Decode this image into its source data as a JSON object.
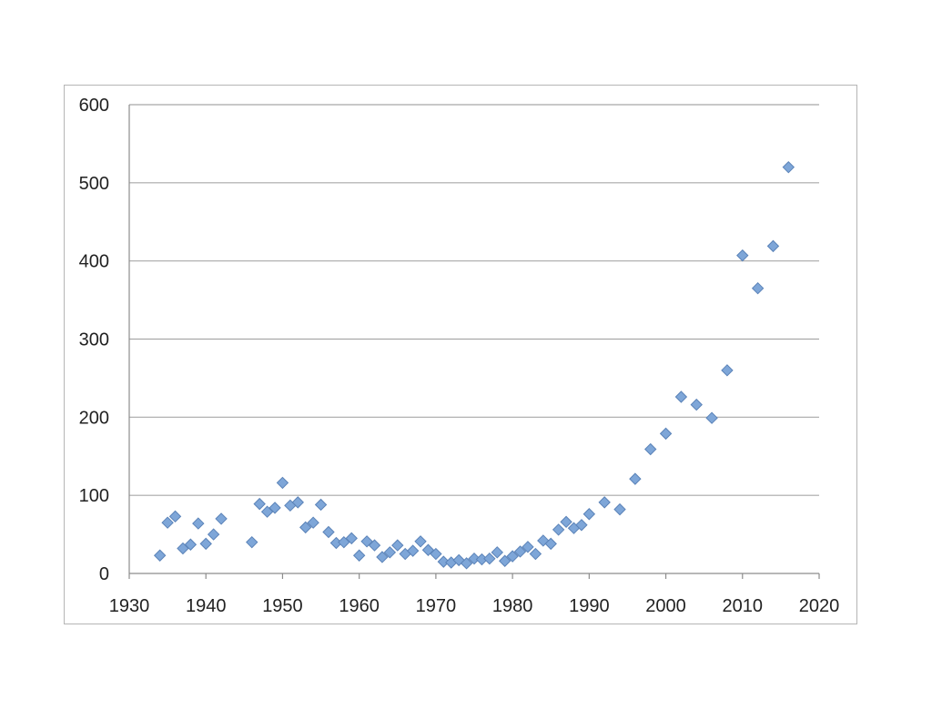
{
  "chart_data": {
    "type": "scatter",
    "title": "",
    "xlabel": "",
    "ylabel": "",
    "xlim": [
      1930,
      2020
    ],
    "ylim": [
      0,
      600
    ],
    "xticks": [
      1930,
      1940,
      1950,
      1960,
      1970,
      1980,
      1990,
      2000,
      2010,
      2020
    ],
    "yticks": [
      0,
      100,
      200,
      300,
      400,
      500,
      600
    ],
    "grid": "horizontal",
    "legend": "none",
    "marker": "diamond",
    "marker_color": "#7ea6d8",
    "marker_edge_color": "#5b83b8",
    "series": [
      {
        "points": [
          [
            1934,
            23
          ],
          [
            1935,
            65
          ],
          [
            1936,
            73
          ],
          [
            1937,
            32
          ],
          [
            1938,
            37
          ],
          [
            1939,
            64
          ],
          [
            1940,
            38
          ],
          [
            1941,
            50
          ],
          [
            1942,
            70
          ],
          [
            1946,
            40
          ],
          [
            1947,
            89
          ],
          [
            1948,
            79
          ],
          [
            1949,
            84
          ],
          [
            1950,
            116
          ],
          [
            1951,
            87
          ],
          [
            1952,
            91
          ],
          [
            1953,
            59
          ],
          [
            1954,
            65
          ],
          [
            1955,
            88
          ],
          [
            1956,
            53
          ],
          [
            1957,
            39
          ],
          [
            1958,
            40
          ],
          [
            1959,
            45
          ],
          [
            1960,
            23
          ],
          [
            1961,
            41
          ],
          [
            1962,
            36
          ],
          [
            1963,
            21
          ],
          [
            1964,
            27
          ],
          [
            1965,
            36
          ],
          [
            1966,
            25
          ],
          [
            1967,
            29
          ],
          [
            1968,
            41
          ],
          [
            1969,
            30
          ],
          [
            1970,
            25
          ],
          [
            1971,
            15
          ],
          [
            1972,
            14
          ],
          [
            1973,
            17
          ],
          [
            1974,
            13
          ],
          [
            1975,
            19
          ],
          [
            1976,
            18
          ],
          [
            1977,
            19
          ],
          [
            1978,
            27
          ],
          [
            1979,
            16
          ],
          [
            1980,
            22
          ],
          [
            1981,
            28
          ],
          [
            1982,
            34
          ],
          [
            1983,
            25
          ],
          [
            1984,
            42
          ],
          [
            1985,
            38
          ],
          [
            1986,
            56
          ],
          [
            1987,
            66
          ],
          [
            1988,
            58
          ],
          [
            1989,
            62
          ],
          [
            1990,
            76
          ],
          [
            1992,
            91
          ],
          [
            1994,
            82
          ],
          [
            1996,
            121
          ],
          [
            1998,
            159
          ],
          [
            2000,
            179
          ],
          [
            2002,
            226
          ],
          [
            2004,
            216
          ],
          [
            2006,
            199
          ],
          [
            2008,
            260
          ],
          [
            2010,
            407
          ],
          [
            2012,
            365
          ],
          [
            2014,
            419
          ],
          [
            2016,
            520
          ]
        ]
      }
    ]
  }
}
